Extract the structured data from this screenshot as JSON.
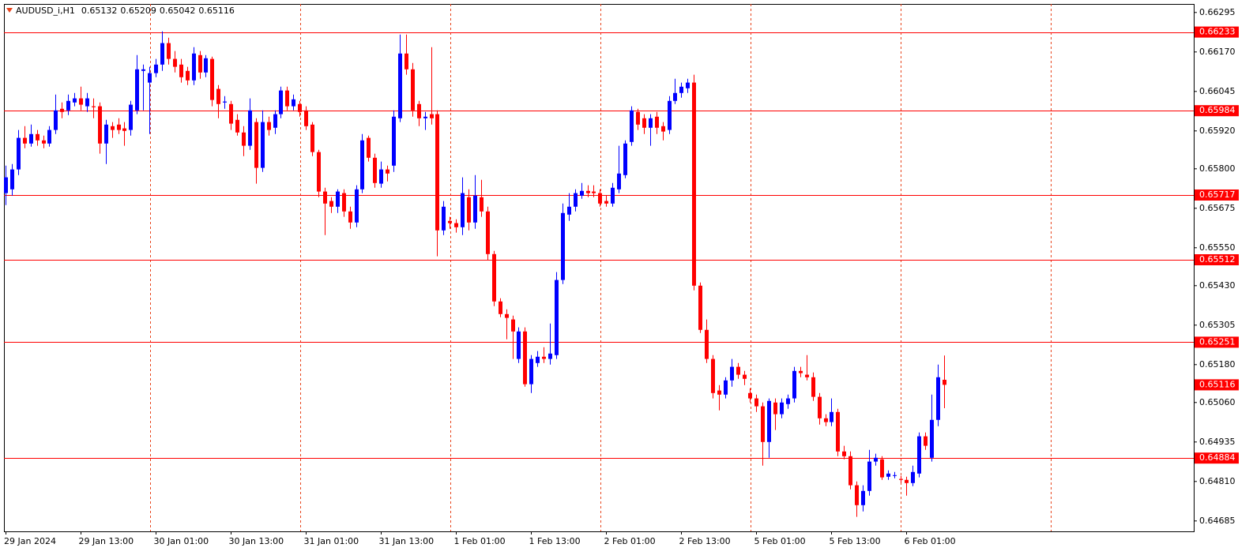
{
  "chart_data": {
    "type": "candlestick",
    "title": "AUDUSD_i,H1",
    "up_color": "#0000ff",
    "down_color": "#ff0000",
    "level_color": "#ff0000",
    "grid": true,
    "ylim": [
      0.64652,
      0.66322
    ],
    "yticks": [
      0.66295,
      {
        "value": 0.6617,
        "label": "0.66170"
      },
      0.66045,
      {
        "value": 0.6592,
        "label": "0.65920"
      },
      {
        "value": 0.658,
        "label": "0.65800"
      },
      0.65675,
      {
        "value": 0.6555,
        "label": "0.65550"
      },
      {
        "value": 0.6543,
        "label": "0.65430"
      },
      0.65305,
      {
        "value": 0.6518,
        "label": "0.65180"
      },
      {
        "value": 0.6506,
        "label": "0.65060"
      },
      0.64935,
      {
        "value": 0.6481,
        "label": "0.64810"
      },
      0.64685
    ],
    "levels": [
      0.66233,
      0.65984,
      0.65717,
      0.65512,
      0.65251,
      0.64884
    ],
    "categories": [
      "29 Jan 2024",
      null,
      null,
      null,
      null,
      null,
      null,
      null,
      null,
      null,
      null,
      null,
      "29 Jan 13:00",
      null,
      null,
      null,
      null,
      null,
      null,
      null,
      null,
      null,
      null,
      null,
      "30 Jan 01:00",
      null,
      null,
      null,
      null,
      null,
      null,
      null,
      null,
      null,
      null,
      null,
      "30 Jan 13:00",
      null,
      null,
      null,
      null,
      null,
      null,
      null,
      null,
      null,
      null,
      null,
      "31 Jan 01:00",
      null,
      null,
      null,
      null,
      null,
      null,
      null,
      null,
      null,
      null,
      null,
      "31 Jan 13:00",
      null,
      null,
      null,
      null,
      null,
      null,
      null,
      null,
      null,
      null,
      null,
      "1 Feb 01:00",
      null,
      null,
      null,
      null,
      null,
      null,
      null,
      null,
      null,
      null,
      null,
      "1 Feb 13:00",
      null,
      null,
      null,
      null,
      null,
      null,
      null,
      null,
      null,
      null,
      null,
      "2 Feb 01:00",
      null,
      null,
      null,
      null,
      null,
      null,
      null,
      null,
      null,
      null,
      null,
      "2 Feb 13:00",
      null,
      null,
      null,
      null,
      null,
      null,
      null,
      null,
      null,
      null,
      null,
      "5 Feb 01:00",
      null,
      null,
      null,
      null,
      null,
      null,
      null,
      null,
      null,
      null,
      null,
      "5 Feb 13:00",
      null,
      null,
      null,
      null,
      null,
      null,
      null,
      null,
      null,
      null,
      null,
      "6 Feb 01:00",
      null,
      null,
      null,
      null,
      null,
      null
    ],
    "open": [
      0.65723,
      0.65735,
      0.65798,
      0.65898,
      0.6588,
      0.6591,
      0.6589,
      0.6588,
      0.65923,
      0.6599,
      0.65985,
      0.6601,
      0.66023,
      0.65998,
      0.65998,
      0.65998,
      0.6588,
      0.65935,
      0.6594,
      0.65928,
      0.65923,
      0.65985,
      0.6611,
      0.66073,
      0.66103,
      0.6613,
      0.66198,
      0.66148,
      0.6613,
      0.6611,
      0.6608,
      0.6616,
      0.66105,
      0.66148,
      0.66053,
      0.6601,
      0.66005,
      0.65955,
      0.65915,
      0.65873,
      0.65948,
      0.65803,
      0.65948,
      0.6593,
      0.65973,
      0.66048,
      0.65998,
      0.66005,
      0.65985,
      0.6594,
      0.65853,
      0.65728,
      0.65698,
      0.6568,
      0.65723,
      0.65665,
      0.6563,
      0.65735,
      0.65898,
      0.65835,
      0.65753,
      0.65798,
      0.6581,
      0.6596,
      0.66165,
      0.66115,
      0.66005,
      0.6596,
      0.65973,
      0.65973,
      0.65605,
      0.65635,
      0.65628,
      0.65615,
      0.6571,
      0.6563,
      0.6571,
      0.65665,
      0.6553,
      0.6538,
      0.6534,
      0.65323,
      0.65198,
      0.65285,
      0.65118,
      0.65185,
      0.65205,
      0.65198,
      0.6521,
      0.65448,
      0.65655,
      0.6568,
      0.65715,
      0.6573,
      0.65728,
      0.65723,
      0.65698,
      0.6569,
      0.65735,
      0.6578,
      0.65885,
      0.6598,
      0.6596,
      0.6593,
      0.65965,
      0.65935,
      0.65923,
      0.66015,
      0.6604,
      0.66055,
      0.66073,
      0.6543,
      0.6529,
      0.65198,
      0.65098,
      0.65085,
      0.6513,
      0.65173,
      0.65148,
      0.6509,
      0.65073,
      0.65048,
      0.64935,
      0.6506,
      0.65023,
      0.65055,
      0.65073,
      0.6516,
      0.65148,
      0.6514,
      0.65078,
      0.6501,
      0.64998,
      0.6503,
      0.64905,
      0.6489,
      0.64798,
      0.64735,
      0.6478,
      0.64873,
      0.6488,
      0.64825,
      0.64828,
      0.64818,
      0.64815,
      0.64805,
      0.64835,
      0.64953,
      0.64885,
      0.65005,
      0.65132
    ],
    "high": [
      0.6581,
      0.65815,
      0.65923,
      0.65935,
      0.6594,
      0.65923,
      0.65905,
      0.65935,
      0.66035,
      0.6601,
      0.66035,
      0.6604,
      0.6606,
      0.6604,
      0.66023,
      0.6601,
      0.65955,
      0.65948,
      0.6596,
      0.65948,
      0.66015,
      0.6616,
      0.6613,
      0.66123,
      0.66148,
      0.66235,
      0.66215,
      0.66173,
      0.66148,
      0.66123,
      0.66185,
      0.66173,
      0.6616,
      0.66155,
      0.66065,
      0.6603,
      0.66015,
      0.65973,
      0.65935,
      0.66023,
      0.6596,
      0.65985,
      0.65965,
      0.65985,
      0.6606,
      0.6606,
      0.66035,
      0.66015,
      0.65998,
      0.65948,
      0.6586,
      0.6574,
      0.6571,
      0.65735,
      0.65735,
      0.6568,
      0.65748,
      0.6591,
      0.65905,
      0.65848,
      0.65823,
      0.6581,
      0.65985,
      0.66225,
      0.66225,
      0.66135,
      0.66015,
      0.6598,
      0.66185,
      0.65985,
      0.65698,
      0.65648,
      0.6564,
      0.65773,
      0.65735,
      0.6578,
      0.65765,
      0.6568,
      0.6554,
      0.6539,
      0.65355,
      0.65335,
      0.65298,
      0.65298,
      0.6521,
      0.65223,
      0.65235,
      0.6531,
      0.65473,
      0.6569,
      0.65723,
      0.65735,
      0.65755,
      0.65748,
      0.65748,
      0.65735,
      0.65715,
      0.65755,
      0.65873,
      0.6589,
      0.65998,
      0.6599,
      0.65973,
      0.65973,
      0.6598,
      0.65948,
      0.6603,
      0.66085,
      0.66073,
      0.66085,
      0.66098,
      0.6544,
      0.65323,
      0.6521,
      0.65115,
      0.6514,
      0.65198,
      0.65185,
      0.6516,
      0.65105,
      0.65085,
      0.6506,
      0.65073,
      0.65073,
      0.65073,
      0.65085,
      0.65173,
      0.65173,
      0.6521,
      0.65155,
      0.6509,
      0.65023,
      0.65073,
      0.6504,
      0.64923,
      0.64905,
      0.6481,
      0.64798,
      0.6491,
      0.64898,
      0.6489,
      0.64845,
      0.6484,
      0.64828,
      0.64825,
      0.6486,
      0.64965,
      0.64965,
      0.65085,
      0.6518,
      0.65209
    ],
    "low": [
      0.65685,
      0.65715,
      0.6578,
      0.65865,
      0.6587,
      0.65873,
      0.65865,
      0.6587,
      0.6591,
      0.6596,
      0.6597,
      0.65998,
      0.65985,
      0.6598,
      0.6596,
      0.65848,
      0.65815,
      0.65898,
      0.6591,
      0.65873,
      0.65905,
      0.65973,
      0.65985,
      0.6591,
      0.6609,
      0.6611,
      0.6613,
      0.66105,
      0.66073,
      0.66065,
      0.66065,
      0.66085,
      0.6609,
      0.65998,
      0.6596,
      0.6599,
      0.65923,
      0.65905,
      0.6584,
      0.6586,
      0.65753,
      0.6579,
      0.65905,
      0.6591,
      0.6596,
      0.65985,
      0.65985,
      0.65965,
      0.65923,
      0.6584,
      0.6571,
      0.6559,
      0.6566,
      0.6566,
      0.65648,
      0.6561,
      0.65615,
      0.65723,
      0.65823,
      0.6574,
      0.6574,
      0.6576,
      0.6579,
      0.65948,
      0.66098,
      0.65965,
      0.65935,
      0.65923,
      0.6594,
      0.65523,
      0.6559,
      0.6561,
      0.65598,
      0.6559,
      0.65605,
      0.6561,
      0.65648,
      0.6551,
      0.65365,
      0.6533,
      0.6526,
      0.65198,
      0.65185,
      0.6511,
      0.6509,
      0.65173,
      0.65185,
      0.6518,
      0.65198,
      0.65435,
      0.65635,
      0.65665,
      0.65705,
      0.6571,
      0.6571,
      0.6568,
      0.6568,
      0.6568,
      0.65723,
      0.6577,
      0.65873,
      0.65923,
      0.6591,
      0.65873,
      0.6591,
      0.6589,
      0.6591,
      0.66005,
      0.66025,
      0.6604,
      0.65415,
      0.6528,
      0.65185,
      0.65073,
      0.65035,
      0.65073,
      0.6511,
      0.65135,
      0.65115,
      0.6506,
      0.6503,
      0.6486,
      0.64885,
      0.64973,
      0.6501,
      0.6504,
      0.6506,
      0.6514,
      0.6513,
      0.65065,
      0.6499,
      0.64985,
      0.64985,
      0.6489,
      0.6488,
      0.64785,
      0.64698,
      0.64715,
      0.64765,
      0.6486,
      0.64815,
      0.64815,
      0.6482,
      0.64805,
      0.64765,
      0.64795,
      0.64823,
      0.6491,
      0.64873,
      0.64985,
      0.65042
    ],
    "close": [
      0.65773,
      0.65798,
      0.65898,
      0.6588,
      0.6591,
      0.6589,
      0.6588,
      0.65923,
      0.65985,
      0.6598,
      0.66015,
      0.66023,
      0.66003,
      0.66023,
      0.65995,
      0.6588,
      0.6594,
      0.65923,
      0.65923,
      0.6592,
      0.66003,
      0.66115,
      0.66115,
      0.66103,
      0.6613,
      0.66198,
      0.66148,
      0.66123,
      0.6609,
      0.6608,
      0.66165,
      0.66105,
      0.6615,
      0.66018,
      0.66005,
      0.66013,
      0.65943,
      0.65915,
      0.65873,
      0.65985,
      0.65803,
      0.65948,
      0.65923,
      0.65973,
      0.66048,
      0.65998,
      0.6602,
      0.6598,
      0.65935,
      0.65853,
      0.65728,
      0.6569,
      0.6568,
      0.65728,
      0.65665,
      0.6563,
      0.65735,
      0.6589,
      0.65835,
      0.65755,
      0.65798,
      0.65785,
      0.65965,
      0.66165,
      0.66115,
      0.65985,
      0.6596,
      0.65965,
      0.6596,
      0.65605,
      0.6568,
      0.65628,
      0.65615,
      0.65723,
      0.6563,
      0.65715,
      0.65665,
      0.6553,
      0.6538,
      0.6534,
      0.65328,
      0.65285,
      0.65285,
      0.65118,
      0.65198,
      0.65205,
      0.65198,
      0.65215,
      0.65448,
      0.6566,
      0.6568,
      0.65723,
      0.6573,
      0.65723,
      0.65723,
      0.6569,
      0.6569,
      0.6574,
      0.65785,
      0.6588,
      0.65985,
      0.6594,
      0.6593,
      0.6596,
      0.6593,
      0.65918,
      0.66015,
      0.6604,
      0.6606,
      0.66073,
      0.6543,
      0.6529,
      0.65198,
      0.6509,
      0.65085,
      0.6513,
      0.65173,
      0.65148,
      0.65135,
      0.65073,
      0.65048,
      0.64935,
      0.65065,
      0.65023,
      0.6506,
      0.65073,
      0.6516,
      0.65153,
      0.6514,
      0.65078,
      0.6501,
      0.64998,
      0.6503,
      0.64905,
      0.6489,
      0.64798,
      0.64735,
      0.6478,
      0.64873,
      0.64885,
      0.64823,
      0.64835,
      0.6483,
      0.64815,
      0.64805,
      0.6484,
      0.64953,
      0.64923,
      0.65005,
      0.6514,
      0.65116
    ]
  }
}
